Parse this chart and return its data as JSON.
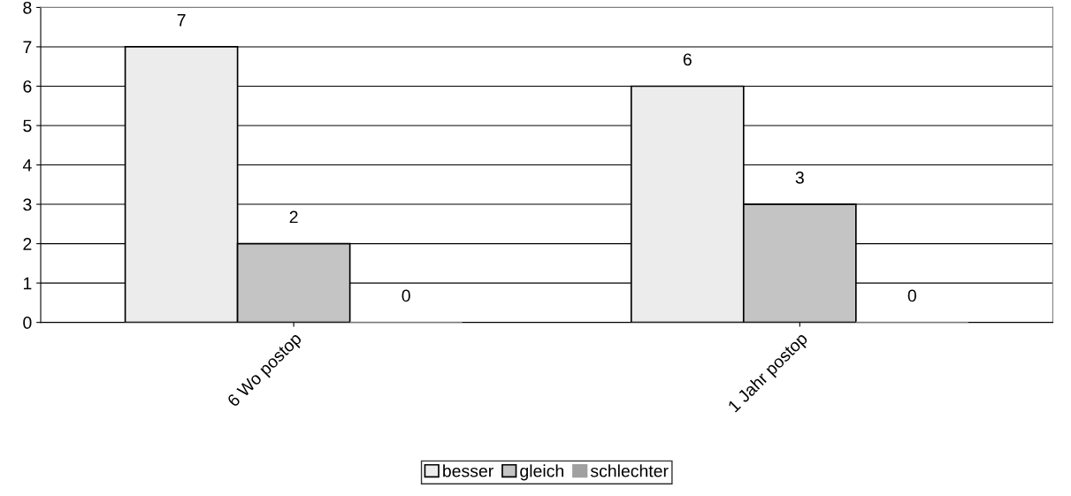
{
  "chart_data": {
    "type": "bar",
    "categories": [
      "6 Wo postop",
      "1 Jahr postop"
    ],
    "series": [
      {
        "name": "besser",
        "color": "#ececec",
        "values": [
          7,
          6
        ]
      },
      {
        "name": "gleich",
        "color": "#c4c4c4",
        "values": [
          2,
          3
        ]
      },
      {
        "name": "schlechter",
        "color": "#a0a0a0",
        "values": [
          0,
          0
        ]
      }
    ],
    "ylim": [
      0,
      8
    ],
    "yticks": [
      0,
      1,
      2,
      3,
      4,
      5,
      6,
      7,
      8
    ],
    "grid": "y",
    "legend": "bottom",
    "data_labels": true
  }
}
